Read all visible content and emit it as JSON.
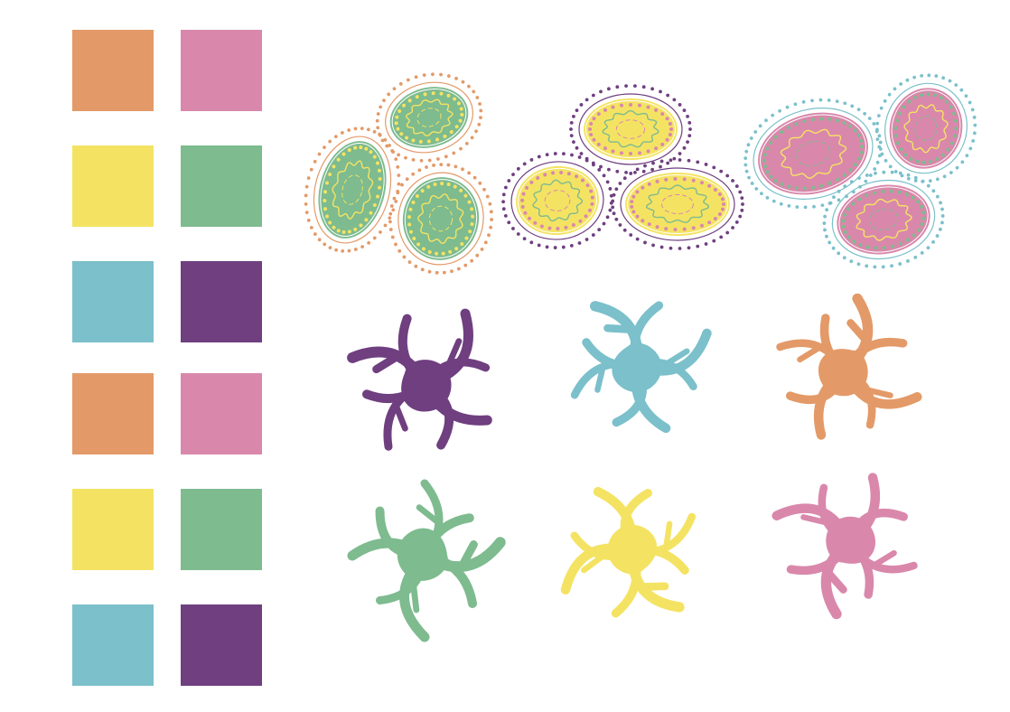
{
  "palette": [
    "#E39A68",
    "#D988AB",
    "#F4E363",
    "#7EBB8F",
    "#7BC0CB",
    "#6F3F80"
  ],
  "swatch_rows": [
    [
      "#E39A68",
      "#D988AB"
    ],
    [
      "#F4E363",
      "#7EBB8F"
    ],
    [
      "#7BC0CB",
      "#6F3F80"
    ],
    [
      "#E39A68",
      "#D988AB"
    ],
    [
      "#F4E363",
      "#7EBB8F"
    ],
    [
      "#7BC0CB",
      "#6F3F80"
    ]
  ],
  "cell_clusters": [
    {
      "name": "green-cells",
      "fill": "#7EBB8F",
      "inner_dots": "#F4E363",
      "outer_dots": "#E39A68",
      "squiggle": "#F4E363"
    },
    {
      "name": "yellow-cells",
      "fill": "#F4E363",
      "inner_dots": "#D988AB",
      "outer_dots": "#6F3F80",
      "squiggle": "#7EBB8F"
    },
    {
      "name": "pink-cells",
      "fill": "#D988AB",
      "inner_dots": "#7EBB8F",
      "outer_dots": "#7BC0CB",
      "squiggle": "#F4E363"
    }
  ],
  "blob_rows": [
    [
      "#6F3F80",
      "#7BC0CB",
      "#E39A68"
    ],
    [
      "#7EBB8F",
      "#F4E363",
      "#D988AB"
    ]
  ]
}
